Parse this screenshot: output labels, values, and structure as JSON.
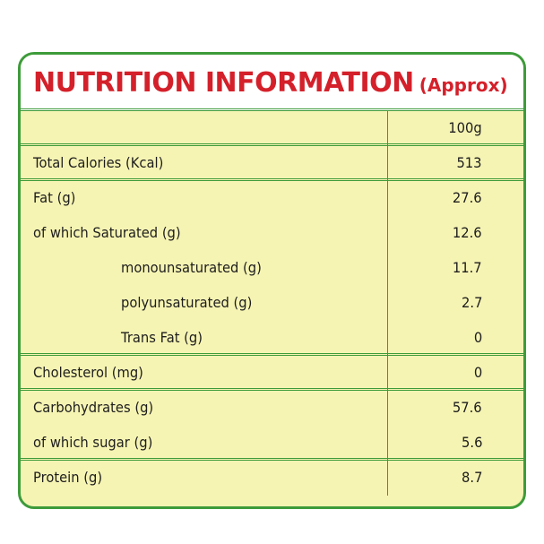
{
  "header": {
    "title": "NUTRITION INFORMATION",
    "subtitle": "(Approx)"
  },
  "table": {
    "column_header": "100g",
    "groups": [
      [
        [
          "Total Calories (Kcal)",
          513
        ]
      ],
      [
        [
          "Fat (g)",
          27.6
        ],
        [
          "of which Saturated (g)",
          12.6
        ],
        [
          "monounsaturated (g)",
          11.7
        ],
        [
          "polyunsaturated (g)",
          2.7
        ],
        [
          "Trans Fat (g)",
          0
        ]
      ],
      [
        [
          "Cholesterol (mg)",
          0
        ]
      ],
      [
        [
          "Carbohydrates (g)",
          57.6
        ],
        [
          "of which sugar (g)",
          5.6
        ]
      ],
      [
        [
          "Protein (g)",
          8.7
        ]
      ]
    ]
  }
}
